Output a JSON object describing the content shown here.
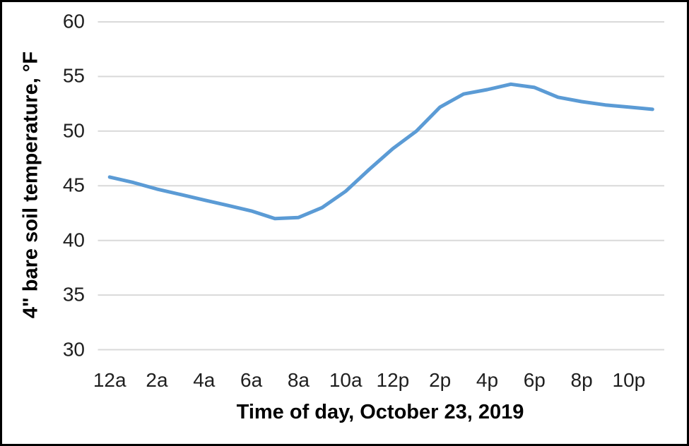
{
  "chart_data": {
    "type": "line",
    "title": "",
    "xlabel": "Time of day, October 23, 2019",
    "ylabel": "4\" bare soil temperature, °F",
    "x": [
      "12a",
      "1a",
      "2a",
      "3a",
      "4a",
      "5a",
      "6a",
      "7a",
      "8a",
      "9a",
      "10a",
      "11a",
      "12p",
      "1p",
      "2p",
      "3p",
      "4p",
      "5p",
      "6p",
      "7p",
      "8p",
      "9p",
      "10p",
      "11p"
    ],
    "values": [
      45.8,
      45.3,
      44.7,
      44.2,
      43.7,
      43.2,
      42.7,
      42.0,
      42.1,
      43.0,
      44.5,
      46.5,
      48.4,
      50.0,
      52.2,
      53.4,
      53.8,
      54.3,
      54.0,
      53.1,
      52.7,
      52.4,
      52.2,
      52.0
    ],
    "x_tick_labels": [
      "12a",
      "2a",
      "4a",
      "6a",
      "8a",
      "10a",
      "12p",
      "2p",
      "4p",
      "6p",
      "8p",
      "10p"
    ],
    "y_ticks": [
      30,
      35,
      40,
      45,
      50,
      55,
      60
    ],
    "ylim": [
      30,
      60
    ],
    "grid": "horizontal",
    "legend": "none",
    "line_color": "#5B9BD5",
    "gridline_color": "#D9D9D9"
  }
}
